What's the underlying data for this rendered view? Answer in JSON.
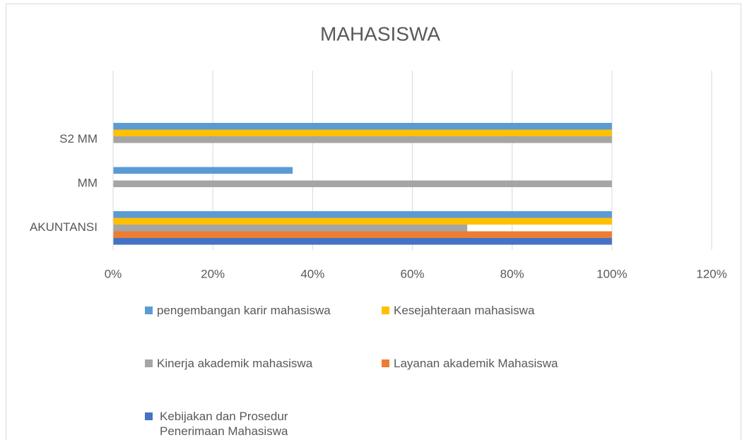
{
  "chart_data": {
    "type": "bar",
    "orientation": "horizontal",
    "title": "MAHASISWA",
    "categories": [
      "AKUNTANSI",
      "MM",
      "S2 MM"
    ],
    "series": [
      {
        "name": "pengembangan karir mahasiswa",
        "color": "#5b9bd5",
        "values": [
          100,
          36,
          100
        ]
      },
      {
        "name": "Kesejahteraan mahasiswa",
        "color": "#ffc000",
        "values": [
          100,
          0,
          100
        ]
      },
      {
        "name": "Kinerja akademik mahasiswa",
        "color": "#a5a5a5",
        "values": [
          71,
          100,
          100
        ]
      },
      {
        "name": "Layanan akademik Mahasiswa",
        "color": "#ed7d31",
        "values": [
          100,
          0,
          0
        ]
      },
      {
        "name": "Kebijakan dan Prosedur Penerimaan Mahasiswa",
        "color": "#4472c4",
        "values": [
          100,
          0,
          0
        ]
      }
    ],
    "xlim": [
      0,
      120
    ],
    "xticks": [
      {
        "value": 0,
        "label": "0%"
      },
      {
        "value": 20,
        "label": "20%"
      },
      {
        "value": 40,
        "label": "40%"
      },
      {
        "value": 60,
        "label": "60%"
      },
      {
        "value": 80,
        "label": "80%"
      },
      {
        "value": 100,
        "label": "100%"
      },
      {
        "value": 120,
        "label": "120%"
      }
    ],
    "grid": true,
    "legend": "bottom"
  }
}
